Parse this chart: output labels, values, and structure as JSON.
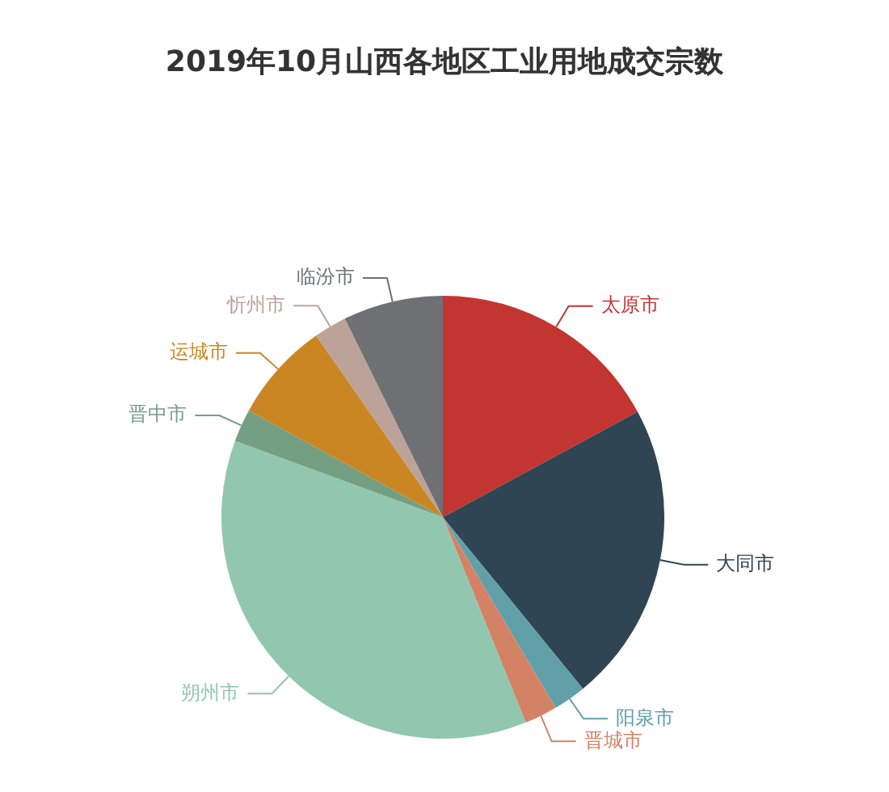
{
  "chart_data": {
    "type": "pie",
    "title": "2019年10月山西各地区工业用地成交宗数",
    "categories": [
      "太原市",
      "大同市",
      "阳泉市",
      "晋城市",
      "朔州市",
      "晋中市",
      "运城市",
      "忻州市",
      "临汾市"
    ],
    "values": [
      17.1,
      22.0,
      2.4,
      2.4,
      36.7,
      2.4,
      7.3,
      2.4,
      7.3
    ],
    "colors": [
      "#c23531",
      "#2f4554",
      "#61a0a8",
      "#d48265",
      "#91c7ae",
      "#749f83",
      "#ca8622",
      "#bda29a",
      "#6e7074"
    ]
  }
}
